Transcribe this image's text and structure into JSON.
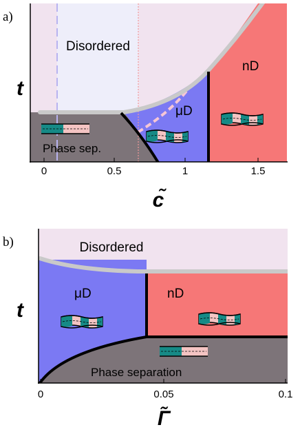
{
  "panel_a": {
    "panel_label": "a)",
    "y_axis_label": "t",
    "x_axis_label": "c̃",
    "x_ticks": [
      "0",
      "0.5",
      "1",
      "1.5"
    ],
    "regions": {
      "disordered": "Disordered",
      "nd": "nD",
      "mud": "μD",
      "phase_sep": "Phase sep."
    }
  },
  "panel_b": {
    "panel_label": "b)",
    "y_axis_label": "t",
    "x_axis_label": "Γ̃",
    "x_ticks": [
      "0",
      "0.05",
      "0.1"
    ],
    "regions": {
      "disordered": "Disordered",
      "mud": "μD",
      "nd": "nD",
      "phase_separation": "Phase separation"
    }
  },
  "colors": {
    "disordered": "#f1e3ef",
    "disordered_light": "#eeeefa",
    "nd": "#f67777",
    "mud": "#7b79f3",
    "phase_sep": "#7d7479",
    "teal": "#168a86",
    "pink": "#f4c4c3"
  }
}
